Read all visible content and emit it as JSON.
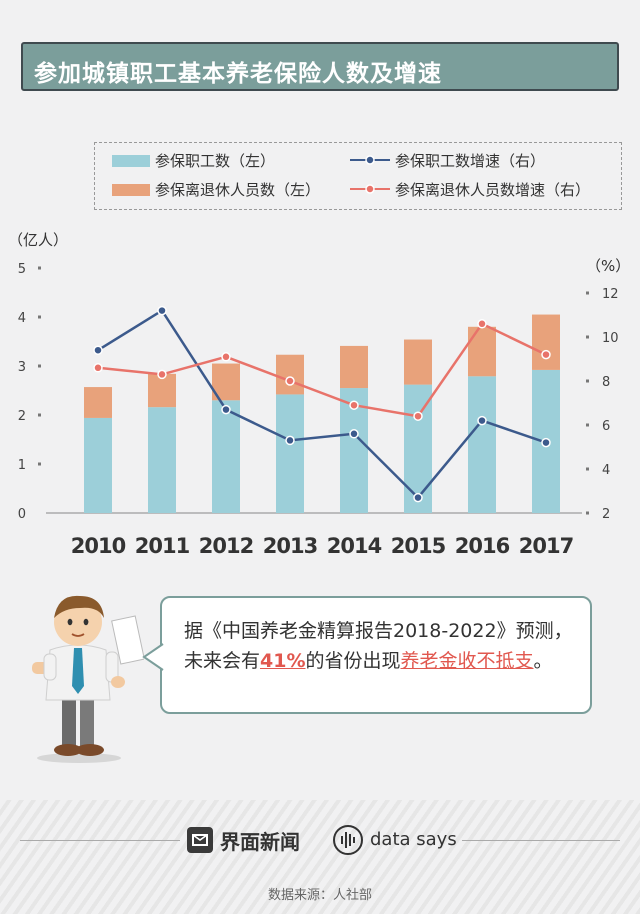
{
  "title": "参加城镇职工基本养老保险人数及增速",
  "legend": [
    {
      "label": "参保职工数（左）",
      "kind": "bar",
      "color": "#9ccfd9"
    },
    {
      "label": "参保职工数增速（右）",
      "kind": "line",
      "color": "#3c5a8c"
    },
    {
      "label": "参保离退休人员数（左）",
      "kind": "bar",
      "color": "#e8a27b"
    },
    {
      "label": "参保离退休人员数增速（右）",
      "kind": "line",
      "color": "#e8736a"
    }
  ],
  "chart_data": {
    "type": "bar",
    "categories": [
      "2010",
      "2011",
      "2012",
      "2013",
      "2014",
      "2015",
      "2016",
      "2017"
    ],
    "left_unit": "（亿人）",
    "right_unit": "（%）",
    "left_ylim": [
      0,
      5
    ],
    "left_ticks": [
      "0",
      "1",
      "2",
      "3",
      "4",
      "5"
    ],
    "right_ylim": [
      2,
      12
    ],
    "right_ticks": [
      "2",
      "4",
      "6",
      "8",
      "10",
      "12"
    ],
    "series": [
      {
        "name": "参保职工数（左）",
        "axis": "left",
        "kind": "bar",
        "color": "#9ccfd9",
        "values": [
          1.94,
          2.16,
          2.3,
          2.42,
          2.55,
          2.62,
          2.79,
          2.92
        ]
      },
      {
        "name": "参保离退休人员数（左）",
        "axis": "left",
        "kind": "bar",
        "color": "#e8a27b",
        "values": [
          0.63,
          0.68,
          0.75,
          0.81,
          0.86,
          0.92,
          1.01,
          1.13
        ]
      },
      {
        "name": "参保职工数增速（右）",
        "axis": "right",
        "kind": "line",
        "color": "#3c5a8c",
        "values": [
          9.4,
          11.2,
          6.7,
          5.3,
          5.6,
          2.7,
          6.2,
          5.2
        ]
      },
      {
        "name": "参保离退休人员数增速（右）",
        "axis": "right",
        "kind": "line",
        "color": "#e8736a",
        "values": [
          8.6,
          8.3,
          9.1,
          8.0,
          6.9,
          6.4,
          10.6,
          9.2
        ]
      }
    ]
  },
  "bubble": {
    "t1": "据《中国养老金精算报告2018-2022》预测，未来会有",
    "t2": "41%",
    "t3": "的省份出现",
    "t4": "养老金收不抵支",
    "t5": "。"
  },
  "footer": {
    "brand": "界面新闻",
    "data_says": "data says",
    "source": "数据来源：人社部"
  }
}
